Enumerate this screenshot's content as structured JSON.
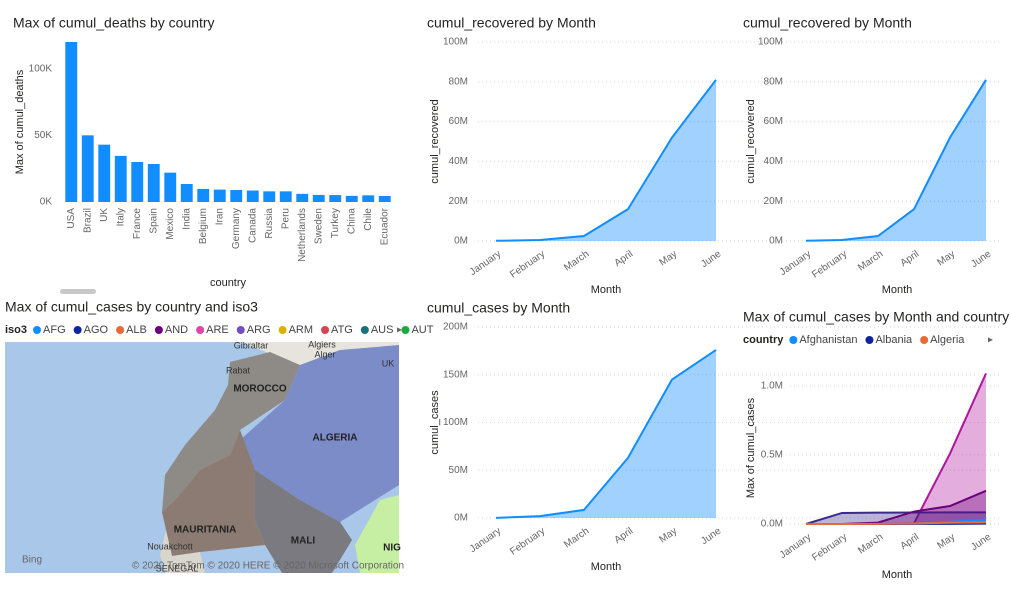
{
  "chart_data": [
    {
      "type": "bar",
      "title": "Max of cumul_deaths by country",
      "x_label": "country",
      "y_label": "Max of cumul_deaths",
      "color": "#118DFF",
      "categories": [
        "USA",
        "Brazil",
        "UK",
        "Italy",
        "France",
        "Spain",
        "Mexico",
        "India",
        "Belgium",
        "Iran",
        "Germany",
        "Canada",
        "Russia",
        "Peru",
        "Netherlands",
        "Sweden",
        "Turkey",
        "China",
        "Chile",
        "Ecuador"
      ],
      "values": [
        120000,
        50000,
        43000,
        34600,
        30000,
        28500,
        22000,
        13500,
        9800,
        9300,
        9000,
        8600,
        8000,
        8000,
        6100,
        5300,
        5200,
        4600,
        5000,
        4500
      ],
      "ylim": [
        0,
        120000
      ],
      "yticks": [
        {
          "value": 0,
          "label": "0K"
        },
        {
          "value": 50000,
          "label": "50K"
        },
        {
          "value": 100000,
          "label": "100K"
        }
      ],
      "grid": false
    },
    {
      "type": "area",
      "title": "cumul_recovered by Month",
      "x_label": "Month",
      "y_label": "cumul_recovered",
      "color": "#118DFF",
      "categories": [
        "January",
        "February",
        "March",
        "April",
        "May",
        "June"
      ],
      "values": [
        100000,
        500000,
        2500000,
        16000000,
        52000000,
        81000000
      ],
      "ylim": [
        0,
        100000000
      ],
      "yticks": [
        {
          "value": 0,
          "label": "0M"
        },
        {
          "value": 20000000,
          "label": "20M"
        },
        {
          "value": 40000000,
          "label": "40M"
        },
        {
          "value": 60000000,
          "label": "60M"
        },
        {
          "value": 80000000,
          "label": "80M"
        },
        {
          "value": 100000000,
          "label": "100M"
        }
      ],
      "grid": true
    },
    {
      "type": "area",
      "title": "cumul_recovered by Month",
      "x_label": "Month",
      "y_label": "cumul_recovered",
      "color": "#118DFF",
      "categories": [
        "January",
        "February",
        "March",
        "April",
        "May",
        "June"
      ],
      "values": [
        100000,
        500000,
        2500000,
        16000000,
        52000000,
        81000000
      ],
      "ylim": [
        0,
        100000000
      ],
      "yticks": [
        {
          "value": 0,
          "label": "0M"
        },
        {
          "value": 20000000,
          "label": "20M"
        },
        {
          "value": 40000000,
          "label": "40M"
        },
        {
          "value": 60000000,
          "label": "60M"
        },
        {
          "value": 80000000,
          "label": "80M"
        },
        {
          "value": 100000000,
          "label": "100M"
        }
      ],
      "grid": true
    },
    {
      "type": "map",
      "title": "Max of cumul_cases by country and iso3",
      "legend_title": "iso3",
      "categories": [
        "AFG",
        "AGO",
        "ALB",
        "AND",
        "ARE",
        "ARG",
        "ARM",
        "ATG",
        "AUS",
        "AUT"
      ],
      "colors": [
        "#118DFF",
        "#12239E",
        "#E66C37",
        "#6B007B",
        "#E044A7",
        "#744EC2",
        "#D9B300",
        "#D64550",
        "#197278",
        "#1AAB40"
      ],
      "place_labels": [
        "Gibraltar",
        "Algiers",
        "Alger",
        "UK",
        "Rabat",
        "MOROCCO",
        "ALGERIA",
        "MAURITANIA",
        "MALI",
        "Nouakchott",
        "SENEGAL",
        "NIG"
      ],
      "logo": "Bing",
      "attribution": "© 2020 TomTom © 2020 HERE © 2020 Microsoft Corporation"
    },
    {
      "type": "area",
      "title": "cumul_cases by Month",
      "x_label": "Month",
      "y_label": "cumul_cases",
      "color": "#118DFF",
      "categories": [
        "January",
        "February",
        "March",
        "April",
        "May",
        "June"
      ],
      "values": [
        100000,
        2000000,
        8500000,
        63000000,
        145000000,
        176000000
      ],
      "ylim": [
        0,
        200000000
      ],
      "yticks": [
        {
          "value": 0,
          "label": "0M"
        },
        {
          "value": 50000000,
          "label": "50M"
        },
        {
          "value": 100000000,
          "label": "100M"
        },
        {
          "value": 150000000,
          "label": "150M"
        },
        {
          "value": 200000000,
          "label": "200M"
        }
      ],
      "grid": true
    },
    {
      "type": "multi-area",
      "title": "Max of cumul_cases by Month and country",
      "x_label": "Month",
      "y_label": "Max of cumul_cases",
      "legend_title": "country",
      "categories": [
        "January",
        "February",
        "March",
        "April",
        "May",
        "June"
      ],
      "series": [
        {
          "color": "#B0159F",
          "values": [
            0,
            0,
            0,
            5000,
            510000,
            1090000
          ]
        },
        {
          "color": "#3A2A8C",
          "values": [
            0,
            80000,
            82000,
            83000,
            84000,
            84500
          ]
        },
        {
          "color": "#6B007B",
          "values": [
            0,
            0,
            10000,
            90000,
            130000,
            240000
          ]
        },
        {
          "name": "Afghanistan",
          "color": "#118DFF",
          "values": [
            0,
            0,
            200,
            2000,
            15000,
            31000
          ]
        },
        {
          "name": "Albania",
          "color": "#12239E",
          "values": [
            0,
            0,
            250,
            800,
            1100,
            2500
          ]
        },
        {
          "name": "Algeria",
          "color": "#E66C37",
          "values": [
            0,
            0,
            700,
            4000,
            9500,
            14000
          ]
        }
      ],
      "ylim": [
        0,
        1100000
      ],
      "yticks": [
        {
          "value": 0,
          "label": "0.0M"
        },
        {
          "value": 500000,
          "label": "0.5M"
        },
        {
          "value": 1000000,
          "label": "1.0M"
        }
      ],
      "grid": true
    }
  ]
}
